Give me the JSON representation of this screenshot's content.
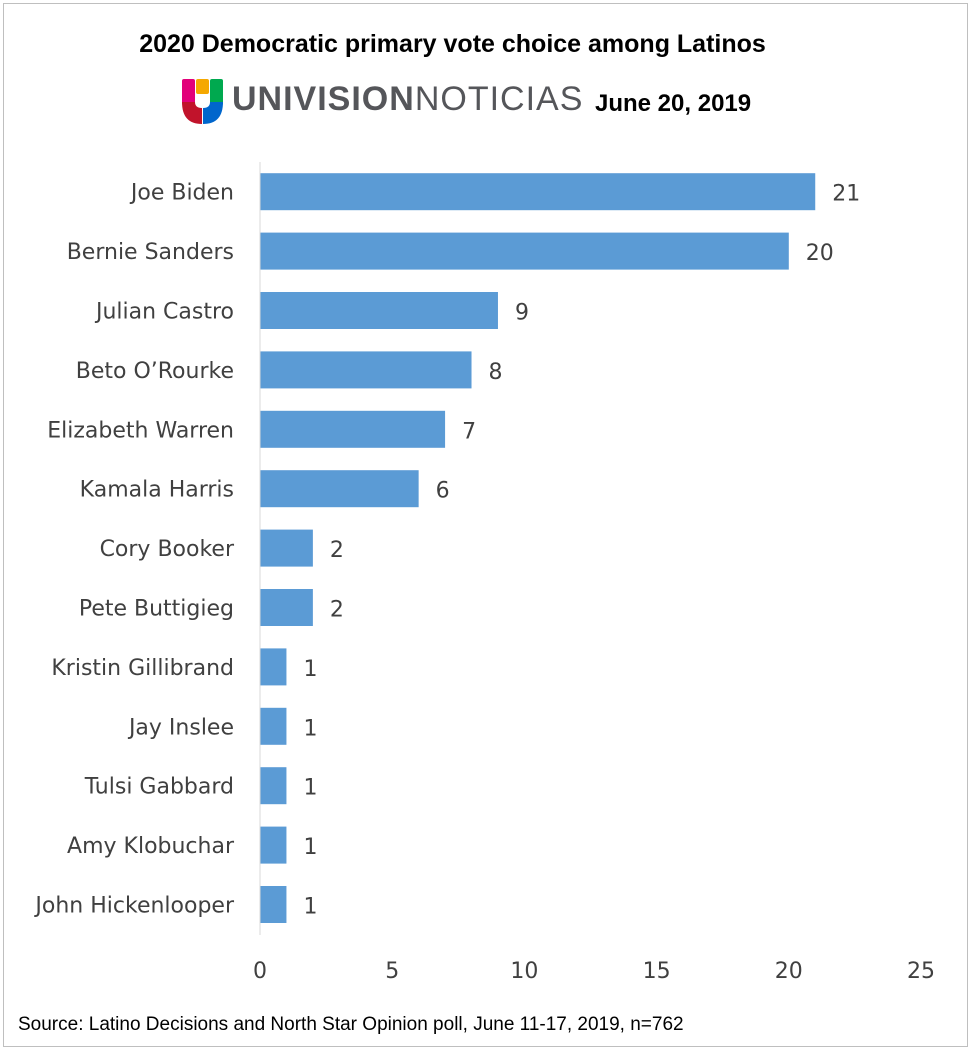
{
  "header": {
    "title": "2020 Democratic primary vote choice among Latinos",
    "brand_bold": "UNIVISION",
    "brand_light": "NOTICIAS",
    "date": "June 20, 2019"
  },
  "footer": {
    "source": "Source: Latino Decisions and North Star Opinion poll, June 11-17, 2019, n=762"
  },
  "logo_colors": [
    "#f5a800",
    "#e2007a",
    "#00a94f",
    "#0066cc",
    "#c1132b"
  ],
  "chart_data": {
    "type": "bar",
    "orientation": "horizontal",
    "title": "2020 Democratic primary vote choice among Latinos",
    "categories": [
      "Joe Biden",
      "Bernie Sanders",
      "Julian Castro",
      "Beto O’Rourke",
      "Elizabeth Warren",
      "Kamala Harris",
      "Cory Booker",
      "Pete Buttigieg",
      "Kristin Gillibrand",
      "Jay Inslee",
      "Tulsi Gabbard",
      "Amy Klobuchar",
      "John Hickenlooper"
    ],
    "values": [
      21,
      20,
      9,
      8,
      7,
      6,
      2,
      2,
      1,
      1,
      1,
      1,
      1
    ],
    "xlim": [
      0,
      25
    ],
    "xticks": [
      0,
      5,
      10,
      15,
      20,
      25
    ],
    "xlabel": "",
    "ylabel": "",
    "grid": false,
    "data_labels": true,
    "bar_color": "#5b9bd5"
  }
}
